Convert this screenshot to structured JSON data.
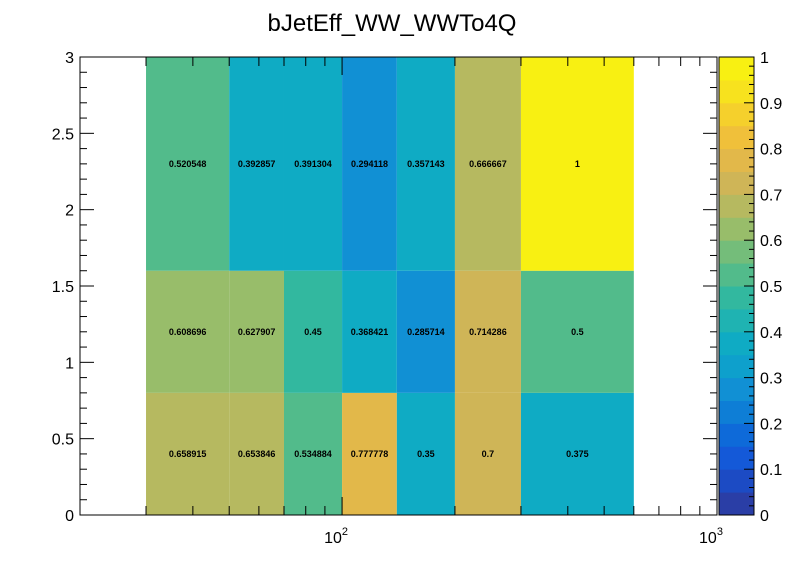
{
  "chart_data": {
    "type": "heatmap",
    "title": "bJetEff_WW_WWTo4Q",
    "x_scale": "log",
    "xlim": [
      20,
      1000
    ],
    "ylim": [
      0,
      3
    ],
    "x_edges": [
      30,
      50,
      70,
      100,
      140,
      200,
      300,
      600
    ],
    "y_edges": [
      0,
      0.8,
      1.6,
      3.0
    ],
    "x_ticks": [
      {
        "value": 100,
        "base": "10",
        "exp": "2"
      },
      {
        "value": 1000,
        "base": "10",
        "exp": "3"
      }
    ],
    "y_ticks": [
      {
        "value": 0,
        "label": "0"
      },
      {
        "value": 0.5,
        "label": "0.5"
      },
      {
        "value": 1,
        "label": "1"
      },
      {
        "value": 1.5,
        "label": "1.5"
      },
      {
        "value": 2,
        "label": "2"
      },
      {
        "value": 2.5,
        "label": "2.5"
      },
      {
        "value": 3,
        "label": "3"
      }
    ],
    "zlim": [
      0,
      1
    ],
    "colorbar_ticks": [
      {
        "value": 0,
        "label": "0"
      },
      {
        "value": 0.1,
        "label": "0.1"
      },
      {
        "value": 0.2,
        "label": "0.2"
      },
      {
        "value": 0.3,
        "label": "0.3"
      },
      {
        "value": 0.4,
        "label": "0.4"
      },
      {
        "value": 0.5,
        "label": "0.5"
      },
      {
        "value": 0.6,
        "label": "0.6"
      },
      {
        "value": 0.7,
        "label": "0.7"
      },
      {
        "value": 0.8,
        "label": "0.8"
      },
      {
        "value": 0.9,
        "label": "0.9"
      },
      {
        "value": 1,
        "label": "1"
      }
    ],
    "palette": [
      "#2a3ea6",
      "#1c4bc4",
      "#1459d8",
      "#0e6ad9",
      "#0e7ed6",
      "#1190d4",
      "#0ea0cc",
      "#0fabc4",
      "#1fb3b2",
      "#32b89f",
      "#52bb8b",
      "#74bd7a",
      "#98bd6a",
      "#b6b960",
      "#cfb557",
      "#e2b84a",
      "#f0c03a",
      "#f5d02c",
      "#f7e21e",
      "#f8f012"
    ],
    "cells": [
      {
        "x0": 30,
        "x1": 50,
        "y0": 0,
        "y1": 0.8,
        "value": 0.658915,
        "label": "0.658915"
      },
      {
        "x0": 50,
        "x1": 70,
        "y0": 0,
        "y1": 0.8,
        "value": 0.653846,
        "label": "0.653846"
      },
      {
        "x0": 70,
        "x1": 100,
        "y0": 0,
        "y1": 0.8,
        "value": 0.534884,
        "label": "0.534884"
      },
      {
        "x0": 100,
        "x1": 140,
        "y0": 0,
        "y1": 0.8,
        "value": 0.777778,
        "label": "0.777778"
      },
      {
        "x0": 140,
        "x1": 200,
        "y0": 0,
        "y1": 0.8,
        "value": 0.35,
        "label": "0.35"
      },
      {
        "x0": 200,
        "x1": 300,
        "y0": 0,
        "y1": 0.8,
        "value": 0.7,
        "label": "0.7"
      },
      {
        "x0": 300,
        "x1": 600,
        "y0": 0,
        "y1": 0.8,
        "value": 0.375,
        "label": "0.375"
      },
      {
        "x0": 30,
        "x1": 50,
        "y0": 0.8,
        "y1": 1.6,
        "value": 0.608696,
        "label": "0.608696"
      },
      {
        "x0": 50,
        "x1": 70,
        "y0": 0.8,
        "y1": 1.6,
        "value": 0.627907,
        "label": "0.627907"
      },
      {
        "x0": 70,
        "x1": 100,
        "y0": 0.8,
        "y1": 1.6,
        "value": 0.45,
        "label": "0.45"
      },
      {
        "x0": 100,
        "x1": 140,
        "y0": 0.8,
        "y1": 1.6,
        "value": 0.368421,
        "label": "0.368421"
      },
      {
        "x0": 140,
        "x1": 200,
        "y0": 0.8,
        "y1": 1.6,
        "value": 0.285714,
        "label": "0.285714"
      },
      {
        "x0": 200,
        "x1": 300,
        "y0": 0.8,
        "y1": 1.6,
        "value": 0.714286,
        "label": "0.714286"
      },
      {
        "x0": 300,
        "x1": 600,
        "y0": 0.8,
        "y1": 1.6,
        "value": 0.5,
        "label": "0.5"
      },
      {
        "x0": 30,
        "x1": 50,
        "y0": 1.6,
        "y1": 3.0,
        "value": 0.520548,
        "label": "0.520548"
      },
      {
        "x0": 50,
        "x1": 70,
        "y0": 1.6,
        "y1": 3.0,
        "value": 0.392857,
        "label": "0.392857"
      },
      {
        "x0": 70,
        "x1": 100,
        "y0": 1.6,
        "y1": 3.0,
        "value": 0.391304,
        "label": "0.391304"
      },
      {
        "x0": 100,
        "x1": 140,
        "y0": 1.6,
        "y1": 3.0,
        "value": 0.294118,
        "label": "0.294118"
      },
      {
        "x0": 140,
        "x1": 200,
        "y0": 1.6,
        "y1": 3.0,
        "value": 0.357143,
        "label": "0.357143"
      },
      {
        "x0": 200,
        "x1": 300,
        "y0": 1.6,
        "y1": 3.0,
        "value": 0.666667,
        "label": "0.666667"
      },
      {
        "x0": 300,
        "x1": 600,
        "y0": 1.6,
        "y1": 3.0,
        "value": 1,
        "label": "1"
      }
    ]
  }
}
